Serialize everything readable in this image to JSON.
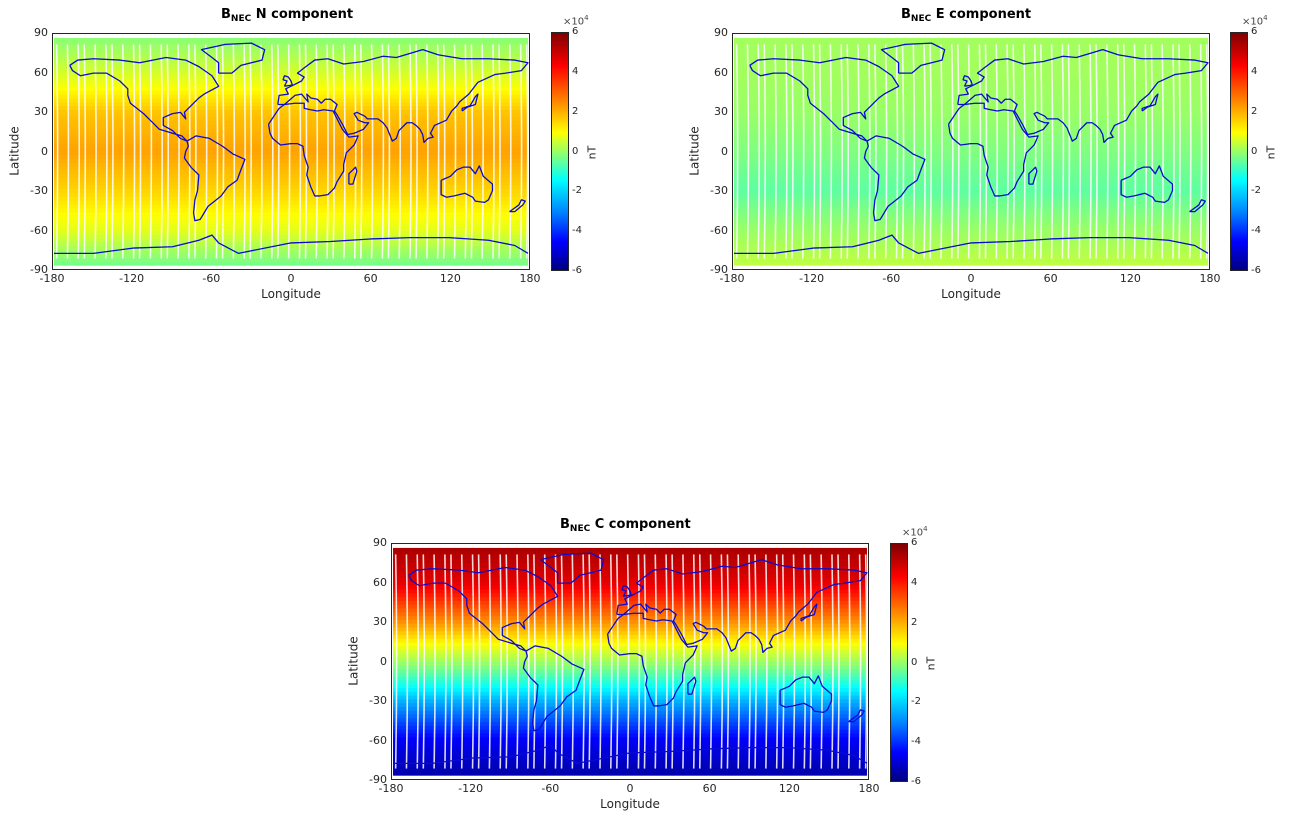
{
  "colors": {
    "coast": "#0a0ad0",
    "frame": "#262626"
  },
  "chart_data": [
    {
      "type": "heatmap",
      "title_prefix": "B",
      "title_sub": "NEC",
      "title_suffix": " N component",
      "xlabel": "Longitude",
      "ylabel": "Latitude",
      "xlim": [
        -180,
        180
      ],
      "ylim": [
        -90,
        90
      ],
      "xticks": [
        -180,
        -120,
        -60,
        0,
        60,
        120,
        180
      ],
      "yticks": [
        90,
        60,
        30,
        0,
        -30,
        -60,
        -90
      ],
      "colorbar": {
        "label": "nT",
        "exponent_base": "×10",
        "exponent_power": "4",
        "ticks": [
          6,
          4,
          2,
          0,
          -2,
          -4,
          -6
        ],
        "range": [
          -6,
          6
        ]
      },
      "component": "N",
      "value_profile_by_latitude": [
        [
          90,
          0.0
        ],
        [
          60,
          1.0
        ],
        [
          30,
          2.2
        ],
        [
          0,
          2.6
        ],
        [
          -30,
          2.0
        ],
        [
          -60,
          1.2
        ],
        [
          -90,
          -0.3
        ]
      ]
    },
    {
      "type": "heatmap",
      "title_prefix": "B",
      "title_sub": "NEC",
      "title_suffix": " E component",
      "xlabel": "Longitude",
      "ylabel": "Latitude",
      "xlim": [
        -180,
        180
      ],
      "ylim": [
        -90,
        90
      ],
      "xticks": [
        -180,
        -120,
        -60,
        0,
        60,
        120,
        180
      ],
      "yticks": [
        90,
        60,
        30,
        0,
        -30,
        -60,
        -90
      ],
      "colorbar": {
        "label": "nT",
        "exponent_base": "×10",
        "exponent_power": "4",
        "ticks": [
          6,
          4,
          2,
          0,
          -2,
          -4,
          -6
        ],
        "range": [
          -6,
          6
        ]
      },
      "component": "E",
      "value_profile_by_latitude": [
        [
          90,
          0.4
        ],
        [
          60,
          0.4
        ],
        [
          30,
          0.3
        ],
        [
          0,
          0.0
        ],
        [
          -30,
          -0.4
        ],
        [
          -60,
          0.3
        ],
        [
          -90,
          0.8
        ]
      ]
    },
    {
      "type": "heatmap",
      "title_prefix": "B",
      "title_sub": "NEC",
      "title_suffix": " C component",
      "xlabel": "Longitude",
      "ylabel": "Latitude",
      "xlim": [
        -180,
        180
      ],
      "ylim": [
        -90,
        90
      ],
      "xticks": [
        -180,
        -120,
        -60,
        0,
        60,
        120,
        180
      ],
      "yticks": [
        90,
        60,
        30,
        0,
        -30,
        -60,
        -90
      ],
      "colorbar": {
        "label": "nT",
        "exponent_base": "×10",
        "exponent_power": "4",
        "ticks": [
          6,
          4,
          2,
          0,
          -2,
          -4,
          -6
        ],
        "range": [
          -6,
          6
        ]
      },
      "component": "C",
      "value_profile_by_latitude": [
        [
          90,
          5.6
        ],
        [
          60,
          4.8
        ],
        [
          30,
          2.8
        ],
        [
          0,
          0.4
        ],
        [
          -30,
          -2.4
        ],
        [
          -60,
          -4.6
        ],
        [
          -90,
          -5.6
        ]
      ]
    }
  ]
}
